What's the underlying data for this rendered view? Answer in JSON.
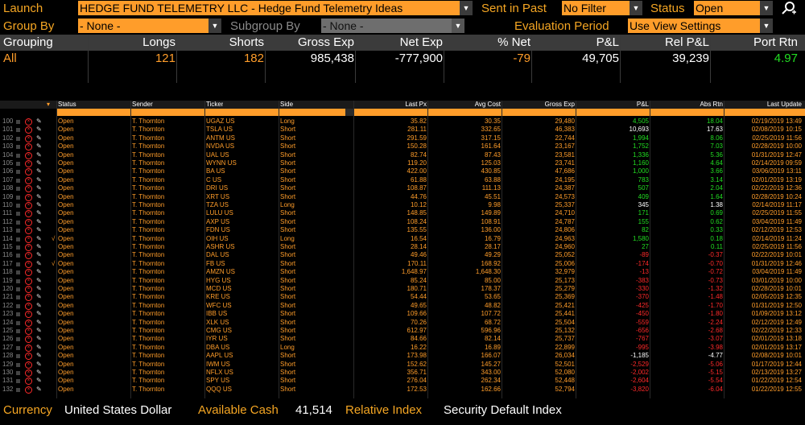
{
  "toolbar": {
    "launch_label": "Launch",
    "launch_value": "HEDGE FUND TELEMETRY LLC - Hedge Fund Telemetry Ideas",
    "sent_label": "Sent in Past",
    "sent_value": "No Filter",
    "status_label": "Status",
    "status_value": "Open",
    "group_label": "Group By",
    "group_value": "- None -",
    "subgroup_label": "Subgroup By",
    "subgroup_value": "- None -",
    "eval_label": "Evaluation Period",
    "eval_value": "Use View Settings"
  },
  "summary": {
    "headers": [
      "Grouping",
      "Longs",
      "Shorts",
      "Gross Exp",
      "Net Exp",
      "% Net",
      "P&L",
      "Rel P&L",
      "Port Rtn"
    ],
    "values": [
      "All",
      "121",
      "182",
      "985,438",
      "-777,900",
      "-79",
      "49,705",
      "39,239",
      "4.97"
    ]
  },
  "grid": {
    "headers": [
      "Status",
      "Sender",
      "Ticker",
      "Side",
      "Last Px",
      "Avg Cost",
      "Gross Exp",
      "P&L",
      "Abs Rtn",
      "Last Update"
    ],
    "rows": [
      {
        "n": "100",
        "chk": "",
        "status": "Open",
        "sender": "T. Thornton",
        "ticker": "UGAZ US",
        "side": "Long",
        "last": "35.82",
        "avg": "30.35",
        "gross": "29,480",
        "pnl": "4,505",
        "rtn": "18.04",
        "upd": "02/19/2019 13:49",
        "pc": "g",
        "rc": "g"
      },
      {
        "n": "101",
        "chk": "",
        "status": "Open",
        "sender": "T. Thornton",
        "ticker": "TSLA US",
        "side": "Short",
        "last": "281.11",
        "avg": "332.65",
        "gross": "46,383",
        "pnl": "10,693",
        "rtn": "17.63",
        "upd": "02/08/2019 10:15",
        "pc": "w",
        "rc": "w"
      },
      {
        "n": "102",
        "chk": "",
        "status": "Open",
        "sender": "T. Thornton",
        "ticker": "ANTM US",
        "side": "Short",
        "last": "291.59",
        "avg": "317.15",
        "gross": "22,744",
        "pnl": "1,994",
        "rtn": "8.06",
        "upd": "02/25/2019 11:56",
        "pc": "g",
        "rc": "g"
      },
      {
        "n": "103",
        "chk": "",
        "status": "Open",
        "sender": "T. Thornton",
        "ticker": "NVDA US",
        "side": "Short",
        "last": "150.28",
        "avg": "161.64",
        "gross": "23,167",
        "pnl": "1,752",
        "rtn": "7.03",
        "upd": "02/28/2019 10:00",
        "pc": "g",
        "rc": "g"
      },
      {
        "n": "104",
        "chk": "",
        "status": "Open",
        "sender": "T. Thornton",
        "ticker": "UAL US",
        "side": "Short",
        "last": "82.74",
        "avg": "87.43",
        "gross": "23,581",
        "pnl": "1,336",
        "rtn": "5.36",
        "upd": "01/31/2019 12:47",
        "pc": "g",
        "rc": "g"
      },
      {
        "n": "105",
        "chk": "",
        "status": "Open",
        "sender": "T. Thornton",
        "ticker": "WYNN US",
        "side": "Short",
        "last": "119.20",
        "avg": "125.03",
        "gross": "23,741",
        "pnl": "1,160",
        "rtn": "4.64",
        "upd": "02/14/2019 09:59",
        "pc": "g",
        "rc": "g"
      },
      {
        "n": "106",
        "chk": "",
        "status": "Open",
        "sender": "T. Thornton",
        "ticker": "BA US",
        "side": "Short",
        "last": "422.00",
        "avg": "430.85",
        "gross": "47,686",
        "pnl": "1,000",
        "rtn": "3.66",
        "upd": "03/06/2019 13:11",
        "pc": "g",
        "rc": "g"
      },
      {
        "n": "107",
        "chk": "",
        "status": "Open",
        "sender": "T. Thornton",
        "ticker": "C US",
        "side": "Short",
        "last": "61.88",
        "avg": "63.88",
        "gross": "24,195",
        "pnl": "783",
        "rtn": "3.14",
        "upd": "02/01/2019 13:19",
        "pc": "g",
        "rc": "g"
      },
      {
        "n": "108",
        "chk": "",
        "status": "Open",
        "sender": "T. Thornton",
        "ticker": "DRI US",
        "side": "Short",
        "last": "108.87",
        "avg": "111.13",
        "gross": "24,387",
        "pnl": "507",
        "rtn": "2.04",
        "upd": "02/22/2019 12:36",
        "pc": "g",
        "rc": "g"
      },
      {
        "n": "109",
        "chk": "",
        "status": "Open",
        "sender": "T. Thornton",
        "ticker": "XRT US",
        "side": "Short",
        "last": "44.76",
        "avg": "45.51",
        "gross": "24,573",
        "pnl": "409",
        "rtn": "1.64",
        "upd": "02/28/2019 10:24",
        "pc": "g",
        "rc": "g"
      },
      {
        "n": "110",
        "chk": "",
        "status": "Open",
        "sender": "T. Thornton",
        "ticker": "TZA US",
        "side": "Long",
        "last": "10.12",
        "avg": "9.98",
        "gross": "25,337",
        "pnl": "345",
        "rtn": "1.38",
        "upd": "02/14/2019 11:17",
        "pc": "w",
        "rc": "w"
      },
      {
        "n": "111",
        "chk": "",
        "status": "Open",
        "sender": "T. Thornton",
        "ticker": "LULU US",
        "side": "Short",
        "last": "148.85",
        "avg": "149.89",
        "gross": "24,710",
        "pnl": "171",
        "rtn": "0.69",
        "upd": "02/25/2019 11:55",
        "pc": "g",
        "rc": "g"
      },
      {
        "n": "112",
        "chk": "",
        "status": "Open",
        "sender": "T. Thornton",
        "ticker": "AXP US",
        "side": "Short",
        "last": "108.24",
        "avg": "108.91",
        "gross": "24,787",
        "pnl": "155",
        "rtn": "0.62",
        "upd": "03/04/2019 11:49",
        "pc": "g",
        "rc": "g"
      },
      {
        "n": "113",
        "chk": "",
        "status": "Open",
        "sender": "T. Thornton",
        "ticker": "FDN US",
        "side": "Short",
        "last": "135.55",
        "avg": "136.00",
        "gross": "24,806",
        "pnl": "82",
        "rtn": "0.33",
        "upd": "02/12/2019 12:53",
        "pc": "g",
        "rc": "g"
      },
      {
        "n": "114",
        "chk": "√",
        "status": "Open",
        "sender": "T. Thornton",
        "ticker": "OIH US",
        "side": "Long",
        "last": "16.54",
        "avg": "16.79",
        "gross": "24,963",
        "pnl": "1,580",
        "rtn": "0.18",
        "upd": "02/14/2019 11:24",
        "pc": "g",
        "rc": "g"
      },
      {
        "n": "115",
        "chk": "",
        "status": "Open",
        "sender": "T. Thornton",
        "ticker": "ASHR US",
        "side": "Short",
        "last": "28.14",
        "avg": "28.17",
        "gross": "24,960",
        "pnl": "27",
        "rtn": "0.11",
        "upd": "02/25/2019 11:56",
        "pc": "g",
        "rc": "g"
      },
      {
        "n": "116",
        "chk": "",
        "status": "Open",
        "sender": "T. Thornton",
        "ticker": "DAL US",
        "side": "Short",
        "last": "49.46",
        "avg": "49.29",
        "gross": "25,052",
        "pnl": "-89",
        "rtn": "-0.37",
        "upd": "02/22/2019 10:01",
        "pc": "red",
        "rc": "red"
      },
      {
        "n": "117",
        "chk": "√",
        "status": "Open",
        "sender": "T. Thornton",
        "ticker": "FB US",
        "side": "Short",
        "last": "170.11",
        "avg": "168.92",
        "gross": "25,006",
        "pnl": "-174",
        "rtn": "-0.70",
        "upd": "01/31/2019 12:46",
        "pc": "red",
        "rc": "red"
      },
      {
        "n": "118",
        "chk": "",
        "status": "Open",
        "sender": "T. Thornton",
        "ticker": "AMZN US",
        "side": "Short",
        "last": "1,648.97",
        "avg": "1,648.30",
        "gross": "32,979",
        "pnl": "-13",
        "rtn": "-0.72",
        "upd": "03/04/2019 11:49",
        "pc": "red",
        "rc": "red"
      },
      {
        "n": "119",
        "chk": "",
        "status": "Open",
        "sender": "T. Thornton",
        "ticker": "HYG US",
        "side": "Short",
        "last": "85.24",
        "avg": "85.00",
        "gross": "25,173",
        "pnl": "-383",
        "rtn": "-0.73",
        "upd": "03/01/2019 10:00",
        "pc": "red",
        "rc": "red"
      },
      {
        "n": "120",
        "chk": "",
        "status": "Open",
        "sender": "T. Thornton",
        "ticker": "MCD US",
        "side": "Short",
        "last": "180.71",
        "avg": "178.37",
        "gross": "25,279",
        "pnl": "-330",
        "rtn": "-1.32",
        "upd": "02/28/2019 10:01",
        "pc": "red",
        "rc": "red"
      },
      {
        "n": "121",
        "chk": "",
        "status": "Open",
        "sender": "T. Thornton",
        "ticker": "KRE US",
        "side": "Short",
        "last": "54.44",
        "avg": "53.65",
        "gross": "25,369",
        "pnl": "-370",
        "rtn": "-1.48",
        "upd": "02/05/2019 12:35",
        "pc": "red",
        "rc": "red"
      },
      {
        "n": "122",
        "chk": "",
        "status": "Open",
        "sender": "T. Thornton",
        "ticker": "WFC US",
        "side": "Short",
        "last": "49.65",
        "avg": "48.82",
        "gross": "25,421",
        "pnl": "-425",
        "rtn": "-1.70",
        "upd": "01/31/2019 12:50",
        "pc": "red",
        "rc": "red"
      },
      {
        "n": "123",
        "chk": "",
        "status": "Open",
        "sender": "T. Thornton",
        "ticker": "IBB US",
        "side": "Short",
        "last": "109.66",
        "avg": "107.72",
        "gross": "25,441",
        "pnl": "-450",
        "rtn": "-1.80",
        "upd": "01/09/2019 13:12",
        "pc": "red",
        "rc": "red"
      },
      {
        "n": "124",
        "chk": "",
        "status": "Open",
        "sender": "T. Thornton",
        "ticker": "XLK US",
        "side": "Short",
        "last": "70.26",
        "avg": "68.72",
        "gross": "25,504",
        "pnl": "-559",
        "rtn": "-2.24",
        "upd": "02/12/2019 12:49",
        "pc": "red",
        "rc": "red"
      },
      {
        "n": "125",
        "chk": "",
        "status": "Open",
        "sender": "T. Thornton",
        "ticker": "CMG US",
        "side": "Short",
        "last": "612.97",
        "avg": "596.96",
        "gross": "25,132",
        "pnl": "-656",
        "rtn": "-2.68",
        "upd": "02/22/2019 12:33",
        "pc": "red",
        "rc": "red"
      },
      {
        "n": "126",
        "chk": "",
        "status": "Open",
        "sender": "T. Thornton",
        "ticker": "IYR US",
        "side": "Short",
        "last": "84.66",
        "avg": "82.14",
        "gross": "25,737",
        "pnl": "-767",
        "rtn": "-3.07",
        "upd": "02/01/2019 13:18",
        "pc": "red",
        "rc": "red"
      },
      {
        "n": "127",
        "chk": "",
        "status": "Open",
        "sender": "T. Thornton",
        "ticker": "DBA US",
        "side": "Long",
        "last": "16.22",
        "avg": "16.89",
        "gross": "22,899",
        "pnl": "-995",
        "rtn": "-3.98",
        "upd": "02/01/2019 13:17",
        "pc": "red",
        "rc": "red"
      },
      {
        "n": "128",
        "chk": "",
        "status": "Open",
        "sender": "T. Thornton",
        "ticker": "AAPL US",
        "side": "Short",
        "last": "173.98",
        "avg": "166.07",
        "gross": "26,034",
        "pnl": "-1,185",
        "rtn": "-4.77",
        "upd": "02/08/2019 10:01",
        "pc": "w",
        "rc": "w"
      },
      {
        "n": "129",
        "chk": "",
        "status": "Open",
        "sender": "T. Thornton",
        "ticker": "IWM US",
        "side": "Short",
        "last": "152.62",
        "avg": "145.27",
        "gross": "52,501",
        "pnl": "-2,529",
        "rtn": "-5.06",
        "upd": "01/17/2019 12:44",
        "pc": "red",
        "rc": "red"
      },
      {
        "n": "130",
        "chk": "",
        "status": "Open",
        "sender": "T. Thornton",
        "ticker": "NFLX US",
        "side": "Short",
        "last": "356.71",
        "avg": "343.00",
        "gross": "52,080",
        "pnl": "-2,002",
        "rtn": "-5.15",
        "upd": "02/13/2019 13:27",
        "pc": "red",
        "rc": "red"
      },
      {
        "n": "131",
        "chk": "",
        "status": "Open",
        "sender": "T. Thornton",
        "ticker": "SPY US",
        "side": "Short",
        "last": "276.04",
        "avg": "262.34",
        "gross": "52,448",
        "pnl": "-2,604",
        "rtn": "-5.54",
        "upd": "01/22/2019 12:54",
        "pc": "red",
        "rc": "red"
      },
      {
        "n": "132",
        "chk": "",
        "status": "Open",
        "sender": "T. Thornton",
        "ticker": "QQQ US",
        "side": "Short",
        "last": "172.53",
        "avg": "162.66",
        "gross": "52,794",
        "pnl": "-3,820",
        "rtn": "-6.04",
        "upd": "01/22/2019 12:55",
        "pc": "red",
        "rc": "red"
      }
    ]
  },
  "footer": {
    "currency_label": "Currency",
    "currency_value": "United States Dollar",
    "cash_label": "Available Cash",
    "cash_value": "41,514",
    "index_label": "Relative Index",
    "index_value": "Security Default Index"
  },
  "colors": {
    "accent": "#ff9d2a",
    "positive": "#22dd22",
    "negative": "#ff2a2a",
    "background": "#000000"
  }
}
